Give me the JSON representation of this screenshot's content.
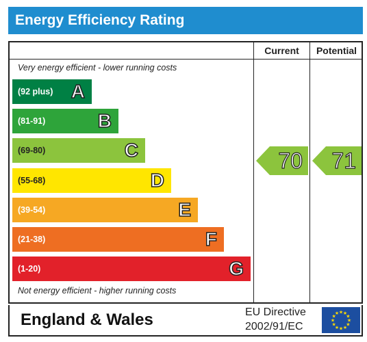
{
  "header": {
    "title": "Energy Efficiency Rating"
  },
  "columns": {
    "current": "Current",
    "potential": "Potential"
  },
  "captions": {
    "top": "Very energy efficient - lower running costs",
    "bottom": "Not energy efficient - higher running costs"
  },
  "bands": [
    {
      "range": "(92 plus)",
      "letter": "A",
      "color": "#008044"
    },
    {
      "range": "(81-91)",
      "letter": "B",
      "color": "#2ea43a"
    },
    {
      "range": "(69-80)",
      "letter": "C",
      "color": "#8cc43d"
    },
    {
      "range": "(55-68)",
      "letter": "D",
      "color": "#ffe600"
    },
    {
      "range": "(39-54)",
      "letter": "E",
      "color": "#f6a823"
    },
    {
      "range": "(21-38)",
      "letter": "F",
      "color": "#ee6e22"
    },
    {
      "range": "(1-20)",
      "letter": "G",
      "color": "#e2212a"
    }
  ],
  "ratings": {
    "current": {
      "value": "70",
      "band": "C",
      "color": "#8cc43d"
    },
    "potential": {
      "value": "71",
      "band": "C",
      "color": "#8cc43d"
    }
  },
  "footer": {
    "region": "England & Wales",
    "directive_line1": "EU Directive",
    "directive_line2": "2002/91/EC",
    "flag_icon": "eu-flag-icon"
  }
}
